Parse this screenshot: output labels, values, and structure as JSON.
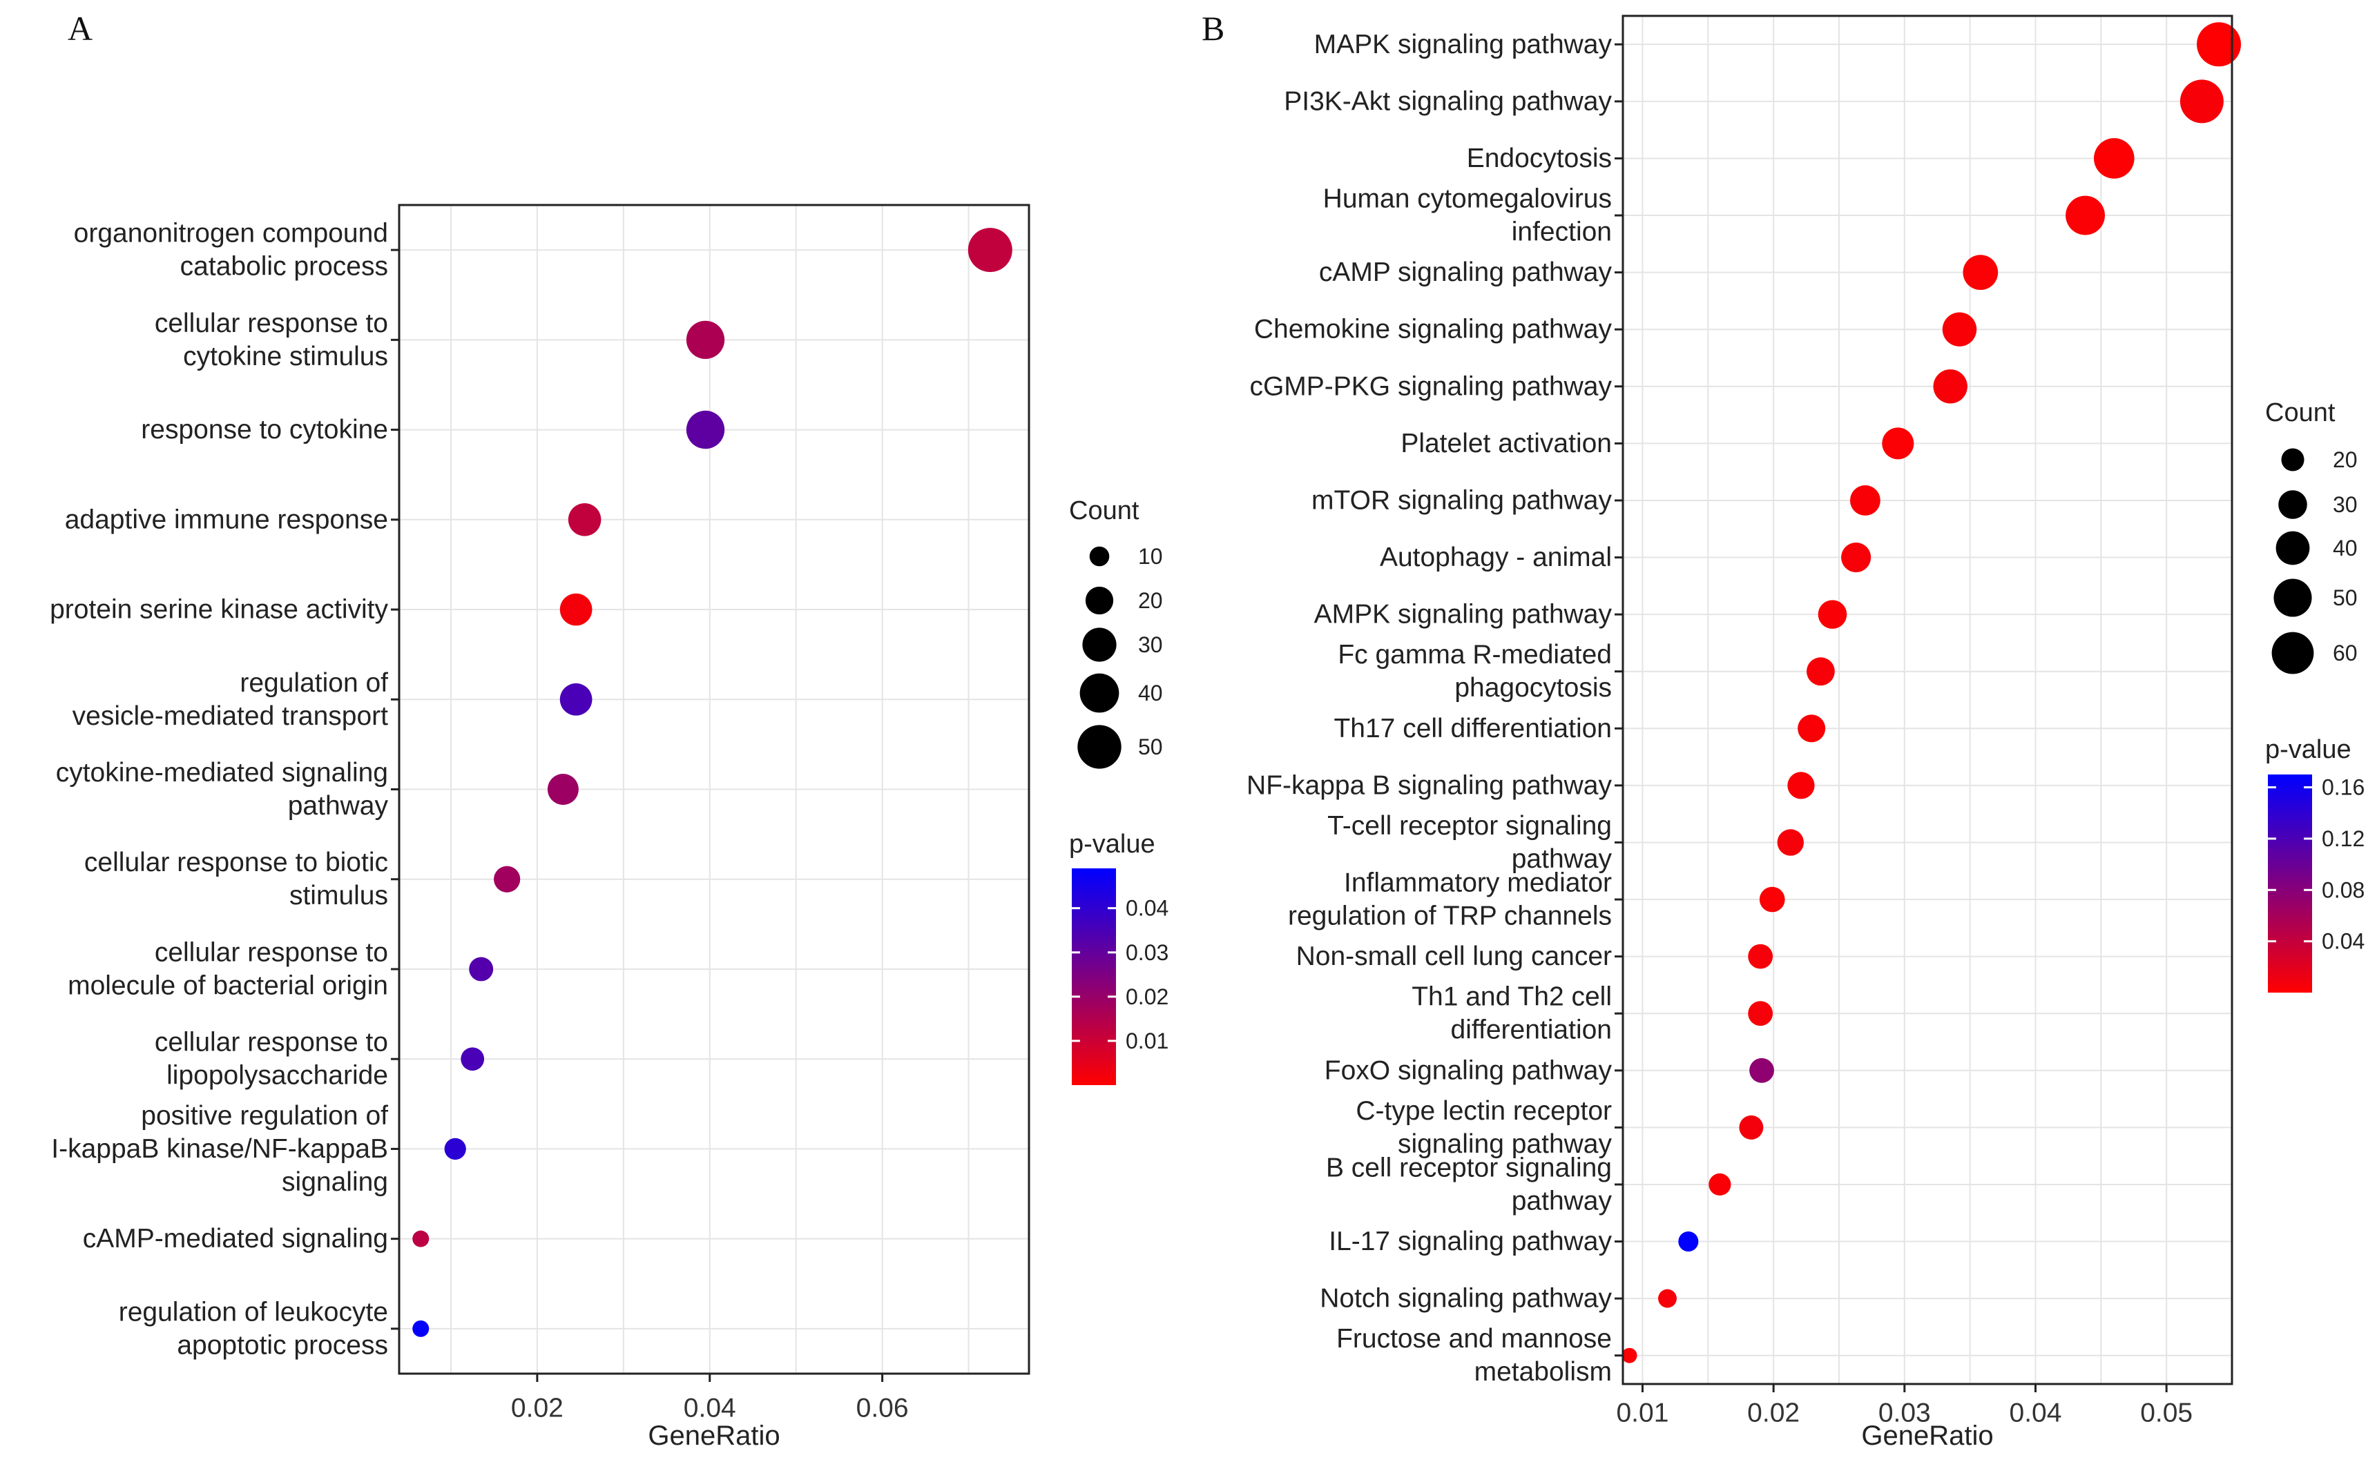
{
  "chart_data": [
    {
      "type": "scatter",
      "panel": "A",
      "xlabel": "GeneRatio",
      "ylabel": "",
      "xlim": [
        0.004,
        0.077
      ],
      "xticks": [
        0.02,
        0.04,
        0.06
      ],
      "xtick_labels": [
        "0.02",
        "0.04",
        "0.06"
      ],
      "categories": [
        [
          "organonitrogen compound",
          "catabolic process"
        ],
        [
          "cellular response to",
          "cytokine stimulus"
        ],
        [
          "response to cytokine"
        ],
        [
          "adaptive immune response"
        ],
        [
          "protein serine kinase activity"
        ],
        [
          "regulation of",
          "vesicle-mediated transport"
        ],
        [
          "cytokine-mediated signaling",
          "pathway"
        ],
        [
          "cellular response to biotic",
          "stimulus"
        ],
        [
          "cellular response to",
          "molecule of bacterial origin"
        ],
        [
          "cellular response to",
          "lipopolysaccharide"
        ],
        [
          "positive regulation of",
          "I-kappaB kinase/NF-kappaB",
          "signaling"
        ],
        [
          "cAMP-mediated signaling"
        ],
        [
          "regulation of leukocyte",
          "apoptotic process"
        ]
      ],
      "x": [
        0.0725,
        0.0395,
        0.0395,
        0.0255,
        0.0245,
        0.0245,
        0.023,
        0.0165,
        0.0135,
        0.0125,
        0.0105,
        0.0065,
        0.0065
      ],
      "count": [
        51,
        38,
        38,
        28,
        27,
        27,
        25,
        18,
        15,
        14,
        12,
        7,
        7
      ],
      "pvalue": [
        0.012,
        0.016,
        0.031,
        0.012,
        0.002,
        0.035,
        0.019,
        0.018,
        0.033,
        0.035,
        0.041,
        0.013,
        0.048
      ],
      "size_legend": {
        "title": "Count",
        "values": [
          10,
          20,
          30,
          40,
          50
        ],
        "labels": [
          "10",
          "20",
          "30",
          "40",
          "50"
        ]
      },
      "color_legend": {
        "title": "p-value",
        "range": [
          0.0,
          0.049
        ],
        "ticks": [
          0.04,
          0.03,
          0.02,
          0.01
        ],
        "tick_labels": [
          "0.04",
          "0.03",
          "0.02",
          "0.01"
        ],
        "low_color": "#ff0000",
        "high_color": "#0000ff"
      }
    },
    {
      "type": "scatter",
      "panel": "B",
      "xlabel": "GeneRatio",
      "ylabel": "",
      "xlim": [
        0.0085,
        0.055
      ],
      "xticks": [
        0.01,
        0.02,
        0.03,
        0.04,
        0.05
      ],
      "xtick_labels": [
        "0.01",
        "0.02",
        "0.03",
        "0.04",
        "0.05"
      ],
      "categories": [
        [
          "MAPK signaling pathway"
        ],
        [
          "PI3K-Akt signaling pathway"
        ],
        [
          "Endocytosis"
        ],
        [
          "Human cytomegalovirus",
          "infection"
        ],
        [
          "cAMP signaling pathway"
        ],
        [
          "Chemokine signaling pathway"
        ],
        [
          "cGMP-PKG signaling pathway"
        ],
        [
          "Platelet activation"
        ],
        [
          "mTOR signaling pathway"
        ],
        [
          "Autophagy - animal"
        ],
        [
          "AMPK signaling pathway"
        ],
        [
          "Fc gamma R-mediated",
          "phagocytosis"
        ],
        [
          "Th17 cell differentiation"
        ],
        [
          "NF-kappa B signaling pathway"
        ],
        [
          "T-cell receptor signaling",
          "pathway"
        ],
        [
          "Inflammatory mediator",
          "regulation of TRP channels"
        ],
        [
          "Non-small cell lung cancer"
        ],
        [
          "Th1 and Th2 cell",
          "differentiation"
        ],
        [
          "FoxO signaling pathway"
        ],
        [
          "C-type lectin receptor",
          "signaling pathway"
        ],
        [
          "B cell receptor signaling",
          "pathway"
        ],
        [
          "IL-17 signaling pathway"
        ],
        [
          "Notch signaling pathway"
        ],
        [
          "Fructose and mannose",
          "metabolism"
        ]
      ],
      "x": [
        0.054,
        0.0527,
        0.046,
        0.0438,
        0.0358,
        0.0342,
        0.0335,
        0.0295,
        0.027,
        0.0263,
        0.0245,
        0.0236,
        0.0229,
        0.0221,
        0.0213,
        0.0199,
        0.019,
        0.019,
        0.0191,
        0.0183,
        0.0159,
        0.0135,
        0.0119,
        0.009
      ],
      "count": [
        66,
        64,
        56,
        53,
        43,
        41,
        41,
        36,
        33,
        32,
        30,
        29,
        28,
        27,
        26,
        24,
        23,
        23,
        23,
        22,
        19,
        16,
        14,
        10
      ],
      "pvalue": [
        0.001,
        0.005,
        0.002,
        0.003,
        0.003,
        0.004,
        0.005,
        0.003,
        0.004,
        0.005,
        0.004,
        0.005,
        0.004,
        0.004,
        0.006,
        0.003,
        0.006,
        0.006,
        0.075,
        0.008,
        0.004,
        0.17,
        0.006,
        0.003
      ],
      "size_legend": {
        "title": "Count",
        "values": [
          20,
          30,
          40,
          50,
          60
        ],
        "labels": [
          "20",
          "30",
          "40",
          "50",
          "60"
        ]
      },
      "color_legend": {
        "title": "p-value",
        "range": [
          0.0,
          0.17
        ],
        "ticks": [
          0.16,
          0.12,
          0.08,
          0.04
        ],
        "tick_labels": [
          "0.16",
          "0.12",
          "0.08",
          "0.04"
        ],
        "low_color": "#ff0000",
        "high_color": "#0000ff"
      }
    }
  ]
}
